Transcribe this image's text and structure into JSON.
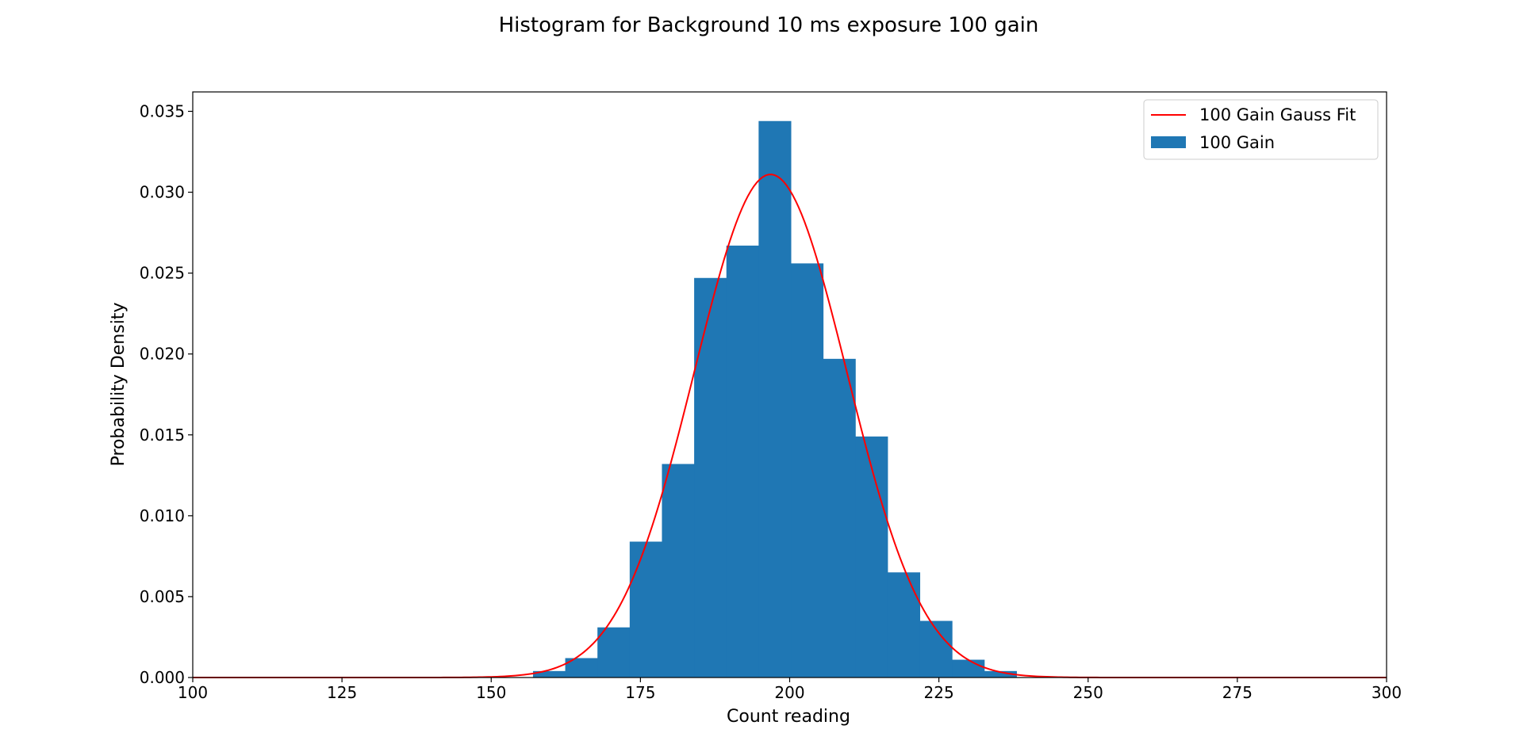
{
  "chart_data": {
    "type": "bar",
    "title": "Histogram for Background 10 ms exposure 100 gain",
    "xlabel": "Count reading",
    "ylabel": "Probability Density",
    "xlim": [
      100,
      300
    ],
    "ylim": [
      0,
      0.0362
    ],
    "xticks": [
      "100",
      "125",
      "150",
      "175",
      "200",
      "225",
      "250",
      "275",
      "300"
    ],
    "yticks": [
      "0.000",
      "0.005",
      "0.010",
      "0.015",
      "0.020",
      "0.025",
      "0.030",
      "0.035"
    ],
    "grid": false,
    "legend_position": "top-right",
    "colors": {
      "bars": "#1f77b4",
      "fit": "#ff0000"
    },
    "series": [
      {
        "name": "100 Gain",
        "kind": "histogram",
        "bin_edges": [
          157.0,
          162.4,
          167.8,
          173.2,
          178.6,
          184.0,
          189.4,
          194.8,
          200.2,
          205.6,
          211.0,
          216.4,
          221.8,
          227.2,
          232.6,
          238.0
        ],
        "values": [
          0.0004,
          0.0012,
          0.0031,
          0.0084,
          0.0132,
          0.0247,
          0.0267,
          0.0344,
          0.0256,
          0.0197,
          0.0149,
          0.0065,
          0.0035,
          0.0011,
          0.0004
        ]
      },
      {
        "name": "100 Gain Gauss Fit",
        "kind": "line",
        "fit": {
          "mean": 196.8,
          "sigma": 12.8,
          "amplitude": 0.0311
        }
      }
    ]
  }
}
